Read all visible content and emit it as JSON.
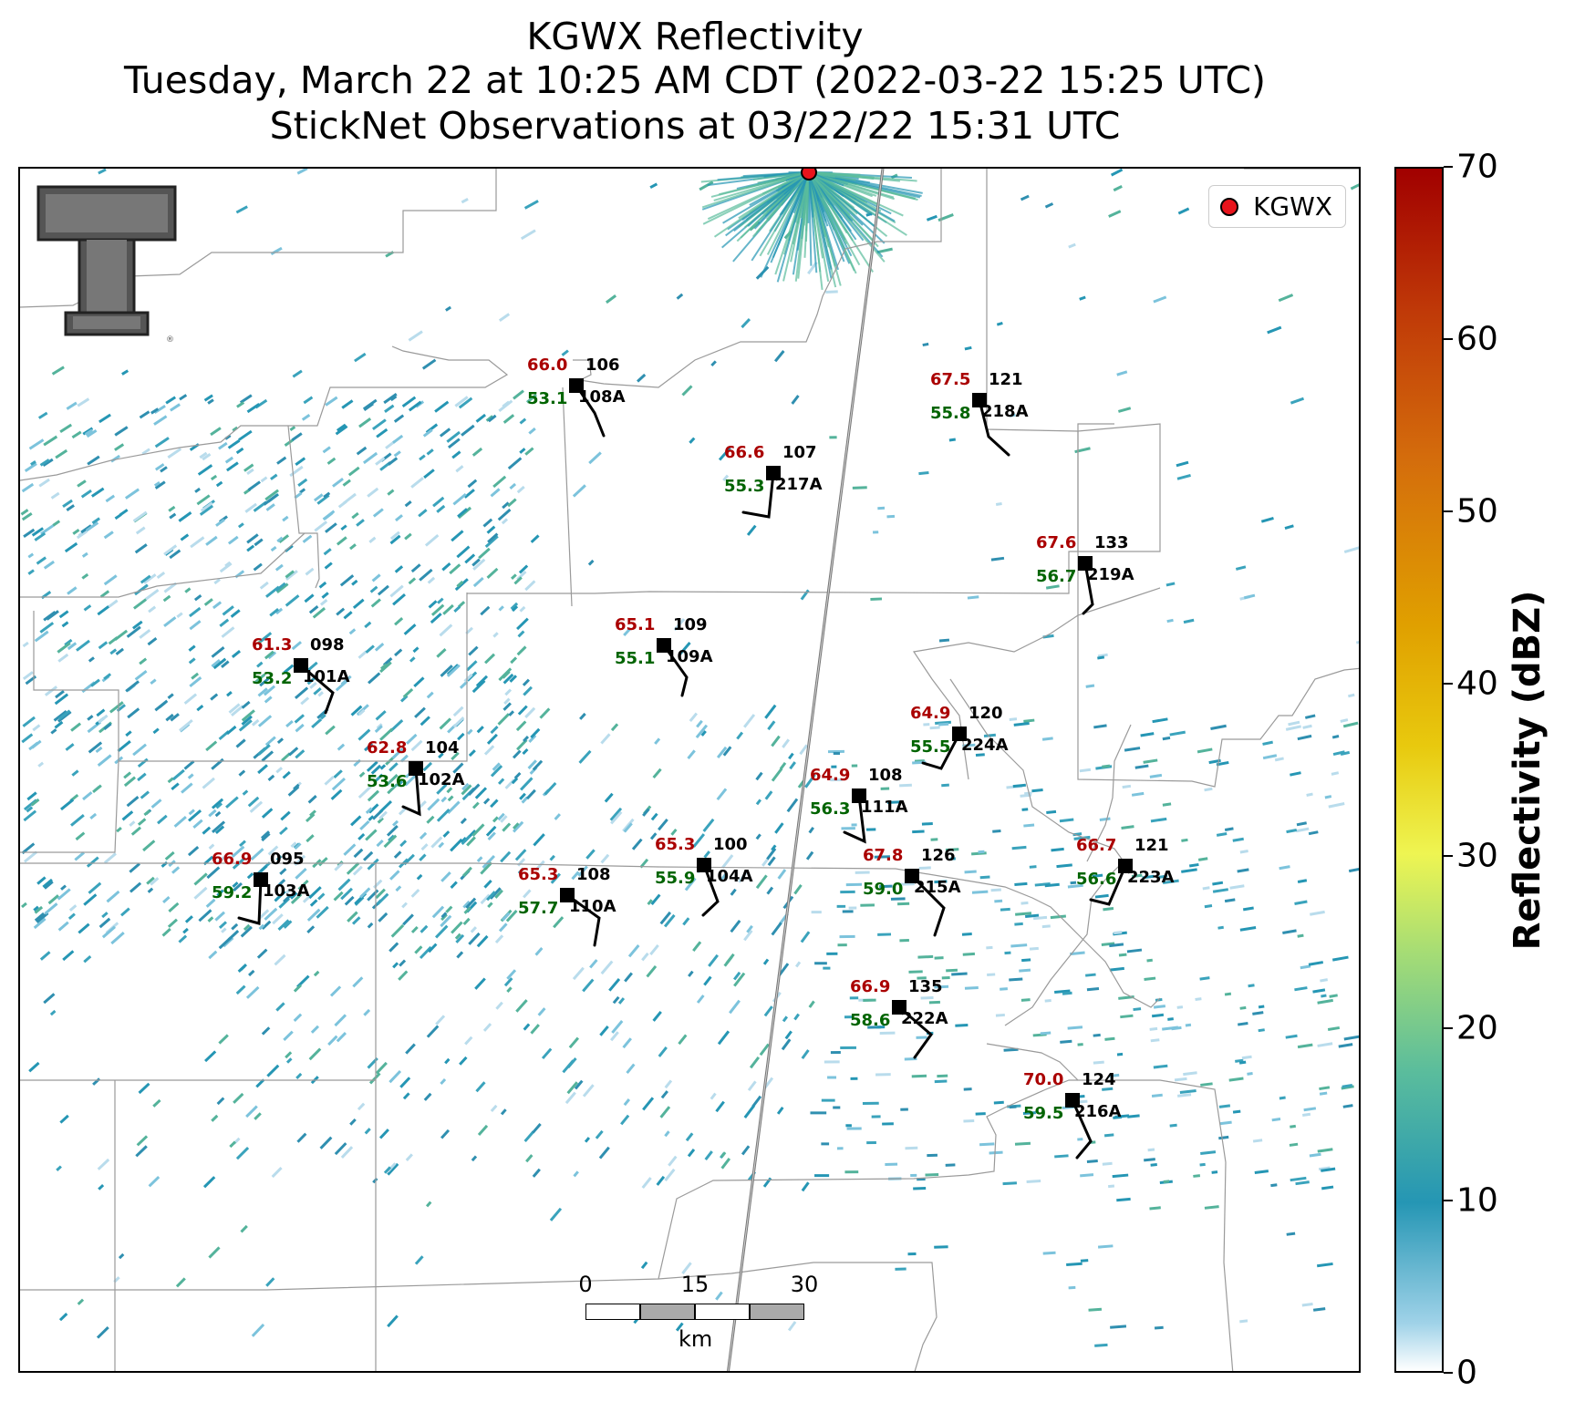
{
  "title": {
    "line1": "KGWX Reflectivity",
    "line2": "Tuesday, March 22 at 10:25 AM CDT (2022-03-22 15:25 UTC)",
    "line3": "StickNet Observations at 03/22/22 15:31 UTC"
  },
  "legend": {
    "label": "KGWX",
    "marker_color": "#e8141c"
  },
  "logo": {
    "icon": "texas-tech-double-t-logo"
  },
  "colorbar": {
    "title": "Reflectivity (dBZ)",
    "ticks": [
      "0",
      "10",
      "20",
      "30",
      "40",
      "50",
      "60",
      "70"
    ],
    "min": 0,
    "max": 70
  },
  "scale_bar": {
    "ticks": [
      "0",
      "15",
      "30"
    ],
    "unit": "km"
  },
  "colors": {
    "temperature": "#aa0000",
    "dewpoint": "#006400",
    "radar_echo": "#2596b4"
  },
  "stations": [
    {
      "id": "108A",
      "temp": "66.0",
      "dewpoint": "53.1",
      "direction": "106"
    },
    {
      "id": "217A",
      "temp": "66.6",
      "dewpoint": "55.3",
      "direction": "107"
    },
    {
      "id": "218A",
      "temp": "67.5",
      "dewpoint": "55.8",
      "direction": "121"
    },
    {
      "id": "219A",
      "temp": "67.6",
      "dewpoint": "56.7",
      "direction": "133"
    },
    {
      "id": "101A",
      "temp": "61.3",
      "dewpoint": "53.2",
      "direction": "098"
    },
    {
      "id": "109A",
      "temp": "65.1",
      "dewpoint": "55.1",
      "direction": "109"
    },
    {
      "id": "224A",
      "temp": "64.9",
      "dewpoint": "55.5",
      "direction": "120"
    },
    {
      "id": "102A",
      "temp": "62.8",
      "dewpoint": "53.6",
      "direction": "104"
    },
    {
      "id": "111A",
      "temp": "64.9",
      "dewpoint": "56.3",
      "direction": "108"
    },
    {
      "id": "103A",
      "temp": "66.9",
      "dewpoint": "59.2",
      "direction": "095"
    },
    {
      "id": "104A",
      "temp": "65.3",
      "dewpoint": "55.9",
      "direction": "100"
    },
    {
      "id": "110A",
      "temp": "65.3",
      "dewpoint": "57.7",
      "direction": "108"
    },
    {
      "id": "215A",
      "temp": "67.8",
      "dewpoint": "59.0",
      "direction": "126"
    },
    {
      "id": "223A",
      "temp": "66.7",
      "dewpoint": "56.6",
      "direction": "121"
    },
    {
      "id": "222A",
      "temp": "66.9",
      "dewpoint": "58.6",
      "direction": "135"
    },
    {
      "id": "216A",
      "temp": "70.0",
      "dewpoint": "59.5",
      "direction": "124"
    }
  ]
}
